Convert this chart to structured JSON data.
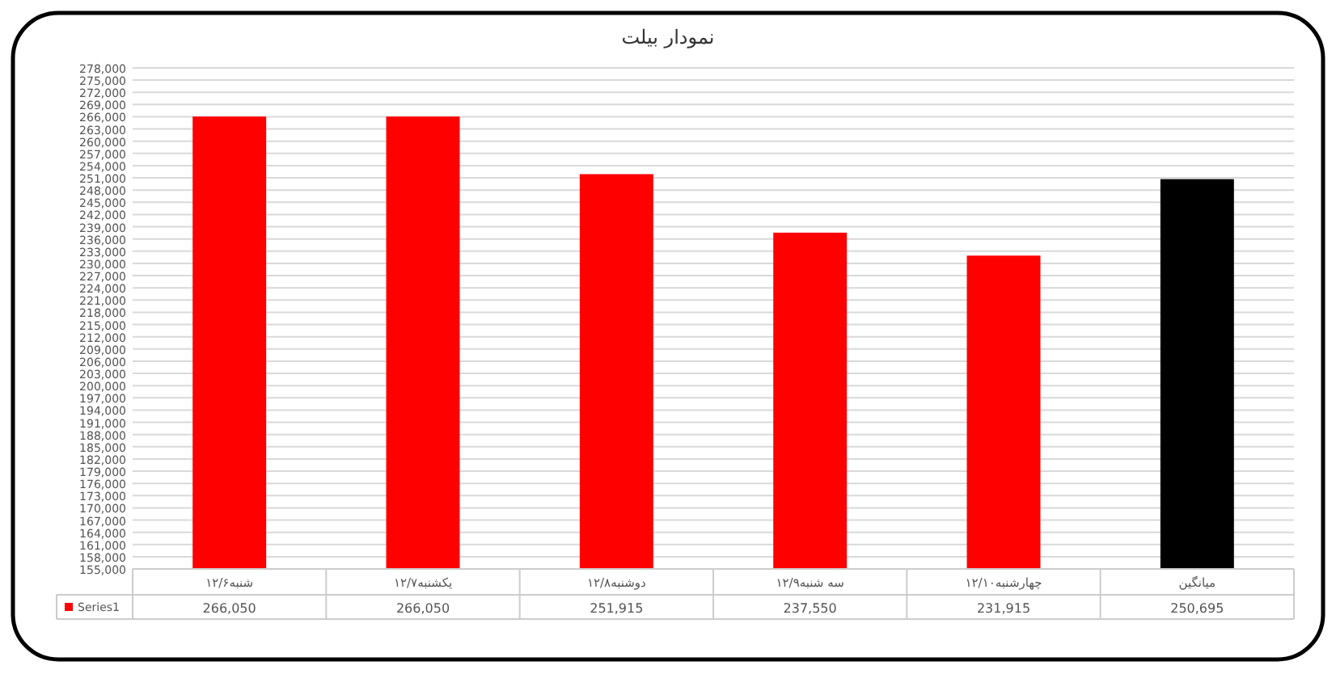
{
  "chart_data": {
    "type": "bar",
    "title": "نمودار بیلت",
    "categories": [
      "شنبه۱۲/۶",
      "یکشنبه۱۲/۷",
      "دوشنبه۱۲/۸",
      "سه شنبه۱۲/۹",
      "چهارشنبه۱۲/۱۰",
      "میانگین"
    ],
    "series": [
      {
        "name": "Series1",
        "color": "#ff0000",
        "colors": [
          "#ff0000",
          "#ff0000",
          "#ff0000",
          "#ff0000",
          "#ff0000",
          "#000000"
        ],
        "values": [
          266050,
          266050,
          251915,
          237550,
          231915,
          250695
        ],
        "value_labels": [
          "266,050",
          "266,050",
          "251,915",
          "237,550",
          "231,915",
          "250,695"
        ]
      }
    ],
    "ylim": [
      155000,
      278000
    ],
    "yticks": [
      {
        "value": 155000,
        "label": "155,000"
      },
      {
        "value": 158000,
        "label": "158,000"
      },
      {
        "value": 161000,
        "label": "161,000"
      },
      {
        "value": 164000,
        "label": "164,000"
      },
      {
        "value": 167000,
        "label": "167,000"
      },
      {
        "value": 170000,
        "label": "170,000"
      },
      {
        "value": 173000,
        "label": "173,000"
      },
      {
        "value": 176000,
        "label": "176,000"
      },
      {
        "value": 179000,
        "label": "179,000"
      },
      {
        "value": 182000,
        "label": "182,000"
      },
      {
        "value": 185000,
        "label": "185,000"
      },
      {
        "value": 188000,
        "label": "188,000"
      },
      {
        "value": 191000,
        "label": "191,000"
      },
      {
        "value": 194000,
        "label": "194,000"
      },
      {
        "value": 197000,
        "label": "197,000"
      },
      {
        "value": 200000,
        "label": "200,000"
      },
      {
        "value": 203000,
        "label": "203,000"
      },
      {
        "value": 206000,
        "label": "206,000"
      },
      {
        "value": 209000,
        "label": "209,000"
      },
      {
        "value": 212000,
        "label": "212,000"
      },
      {
        "value": 215000,
        "label": "215,000"
      },
      {
        "value": 218000,
        "label": "218,000"
      },
      {
        "value": 221000,
        "label": "221,000"
      },
      {
        "value": 224000,
        "label": "224,000"
      },
      {
        "value": 227000,
        "label": "227,000"
      },
      {
        "value": 230000,
        "label": "230,000"
      },
      {
        "value": 233000,
        "label": "233,000"
      },
      {
        "value": 236000,
        "label": "236,000"
      },
      {
        "value": 239000,
        "label": "239,000"
      },
      {
        "value": 242000,
        "label": "242,000"
      },
      {
        "value": 245000,
        "label": "245,000"
      },
      {
        "value": 248000,
        "label": "248,000"
      },
      {
        "value": 251000,
        "label": "251,000"
      },
      {
        "value": 254000,
        "label": "254,000"
      },
      {
        "value": 257000,
        "label": "257,000"
      },
      {
        "value": 260000,
        "label": "260,000"
      },
      {
        "value": 263000,
        "label": "263,000"
      },
      {
        "value": 266000,
        "label": "266,000"
      },
      {
        "value": 269000,
        "label": "269,000"
      },
      {
        "value": 272000,
        "label": "272,000"
      },
      {
        "value": 275000,
        "label": "275,000"
      },
      {
        "value": 278000,
        "label": "278,000"
      }
    ],
    "grid": "y",
    "legend": "bottom left"
  }
}
